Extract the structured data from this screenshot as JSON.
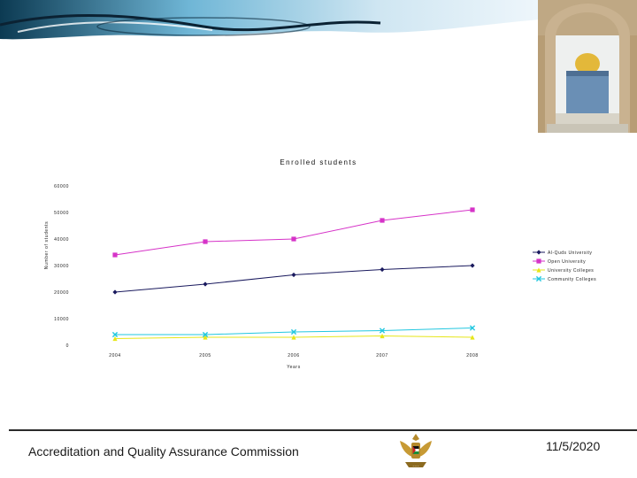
{
  "slide": {
    "footer_org": "Accreditation and Quality Assurance Commission",
    "footer_date": "11/5/2020"
  },
  "chart_data": {
    "type": "line",
    "title": "Enrolled students",
    "xlabel": "Years",
    "ylabel": "Number of students",
    "categories": [
      "2004",
      "2005",
      "2006",
      "2007",
      "2008"
    ],
    "ylim": [
      0,
      60000
    ],
    "yticks": [
      "0",
      "10000",
      "20000",
      "30000",
      "40000",
      "50000",
      "60000"
    ],
    "grid": false,
    "legend_position": "right",
    "series": [
      {
        "name": "Al-Quds University",
        "color": "#1a1a5e",
        "marker": "diamond",
        "values": [
          20000,
          23000,
          26500,
          28500,
          30000
        ]
      },
      {
        "name": "Open University",
        "color": "#d633c8",
        "marker": "square",
        "values": [
          34000,
          39000,
          40000,
          47000,
          51000
        ]
      },
      {
        "name": "University Colleges",
        "color": "#e6e619",
        "marker": "triangle",
        "values": [
          2500,
          3000,
          3000,
          3500,
          3000
        ]
      },
      {
        "name": "Community Colleges",
        "color": "#22c7e0",
        "marker": "x",
        "values": [
          4000,
          4000,
          5000,
          5500,
          6500
        ]
      }
    ]
  }
}
